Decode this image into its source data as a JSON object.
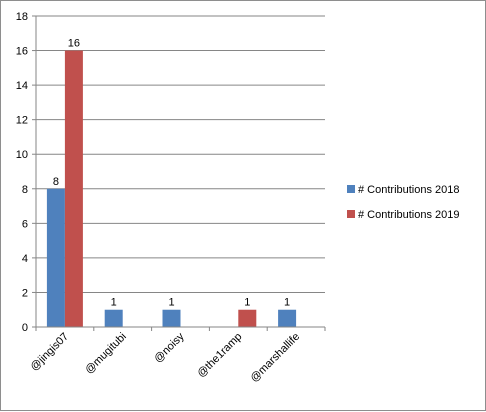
{
  "chart_data": {
    "type": "bar",
    "categories": [
      "@jingis07",
      "@mugitubi",
      "@noisy",
      "@the1ramp",
      "@marshallife"
    ],
    "series": [
      {
        "name": "# Contributions 2018",
        "color": "#4f81bd",
        "values": [
          8,
          1,
          1,
          null,
          1
        ]
      },
      {
        "name": "# Contributions 2019",
        "color": "#c0504d",
        "values": [
          16,
          null,
          null,
          1,
          null
        ]
      }
    ],
    "yticks": [
      "0",
      "2",
      "4",
      "6",
      "8",
      "10",
      "12",
      "14",
      "16",
      "18"
    ],
    "ylim": [
      0,
      18
    ],
    "grid": true,
    "legend_position": "right",
    "data_labels": true
  }
}
